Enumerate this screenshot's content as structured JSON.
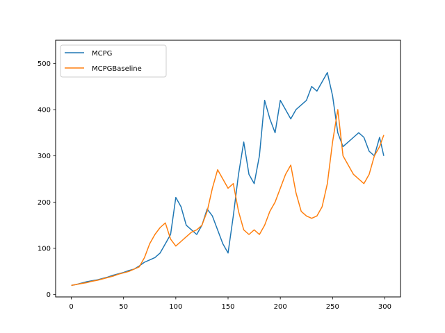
{
  "chart_data": {
    "type": "line",
    "title": "",
    "xlabel": "",
    "ylabel": "",
    "xlim": [
      -15,
      315
    ],
    "ylim": [
      -5,
      550
    ],
    "xticks": [
      0,
      50,
      100,
      150,
      200,
      250,
      300
    ],
    "yticks": [
      0,
      100,
      200,
      300,
      400,
      500
    ],
    "legend": {
      "placement": "upper-left"
    },
    "grid": false,
    "series": [
      {
        "name": "MCPG",
        "color": "#1f77b4",
        "x": [
          0,
          5,
          10,
          15,
          20,
          25,
          30,
          35,
          40,
          45,
          50,
          55,
          60,
          65,
          70,
          75,
          80,
          85,
          90,
          95,
          100,
          105,
          110,
          115,
          120,
          125,
          130,
          135,
          140,
          145,
          150,
          155,
          160,
          165,
          170,
          175,
          180,
          185,
          190,
          195,
          200,
          205,
          210,
          215,
          220,
          225,
          230,
          235,
          240,
          245,
          250,
          255,
          260,
          265,
          270,
          275,
          280,
          285,
          290,
          295,
          299
        ],
        "values": [
          20,
          22,
          25,
          28,
          30,
          32,
          35,
          38,
          42,
          45,
          48,
          52,
          55,
          62,
          70,
          75,
          80,
          90,
          110,
          130,
          210,
          190,
          150,
          140,
          130,
          150,
          185,
          170,
          140,
          110,
          90,
          170,
          260,
          330,
          260,
          240,
          300,
          420,
          380,
          350,
          420,
          400,
          380,
          400,
          410,
          420,
          450,
          440,
          460,
          480,
          430,
          350,
          320,
          330,
          340,
          350,
          340,
          310,
          300,
          340,
          300
        ]
      },
      {
        "name": "MCPGBaseline",
        "color": "#ff7f0e",
        "x": [
          0,
          5,
          10,
          15,
          20,
          25,
          30,
          35,
          40,
          45,
          50,
          55,
          60,
          65,
          70,
          75,
          80,
          85,
          90,
          95,
          100,
          105,
          110,
          115,
          120,
          125,
          130,
          135,
          140,
          145,
          150,
          155,
          160,
          165,
          170,
          175,
          180,
          185,
          190,
          195,
          200,
          205,
          210,
          215,
          220,
          225,
          230,
          235,
          240,
          245,
          250,
          255,
          260,
          265,
          270,
          275,
          280,
          285,
          290,
          295,
          299
        ],
        "values": [
          20,
          22,
          24,
          26,
          29,
          31,
          34,
          37,
          40,
          44,
          47,
          50,
          55,
          60,
          80,
          110,
          130,
          145,
          155,
          120,
          105,
          115,
          125,
          135,
          140,
          150,
          180,
          230,
          270,
          250,
          230,
          240,
          180,
          140,
          130,
          140,
          130,
          150,
          180,
          200,
          230,
          260,
          280,
          220,
          180,
          170,
          165,
          170,
          190,
          240,
          330,
          400,
          300,
          280,
          260,
          250,
          240,
          260,
          300,
          320,
          345
        ]
      }
    ]
  }
}
